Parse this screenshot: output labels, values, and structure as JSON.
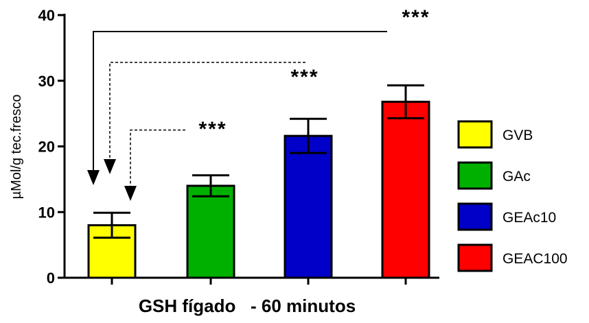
{
  "chart_data": {
    "type": "bar",
    "title": "",
    "xlabel": "GSH fígado   - 60 minutos",
    "ylabel": "µMol/g tec.fresco",
    "ylim": [
      0,
      40
    ],
    "yticks": [
      "0",
      "10",
      "20",
      "30",
      "40"
    ],
    "categories": [
      "GVB",
      "GAc",
      "GEAc10",
      "GEAC100"
    ],
    "values": [
      8.0,
      14.0,
      21.6,
      26.8
    ],
    "errors": [
      1.9,
      1.6,
      2.6,
      2.5
    ],
    "colors": [
      "#ffff00",
      "#00b000",
      "#0000c8",
      "#ff0000"
    ],
    "legend_position": "right",
    "annotations": [
      {
        "label": "***",
        "from": "GEAC100",
        "to": "GVB",
        "line_y": 37.5,
        "style": "solid"
      },
      {
        "label": "***",
        "from": "GEAc10",
        "to": "GVB",
        "line_y": 32.8,
        "style": "dashed"
      },
      {
        "label": "***",
        "from": "GAc",
        "to": "GVB",
        "line_y": 22.5,
        "style": "dashed"
      }
    ]
  }
}
